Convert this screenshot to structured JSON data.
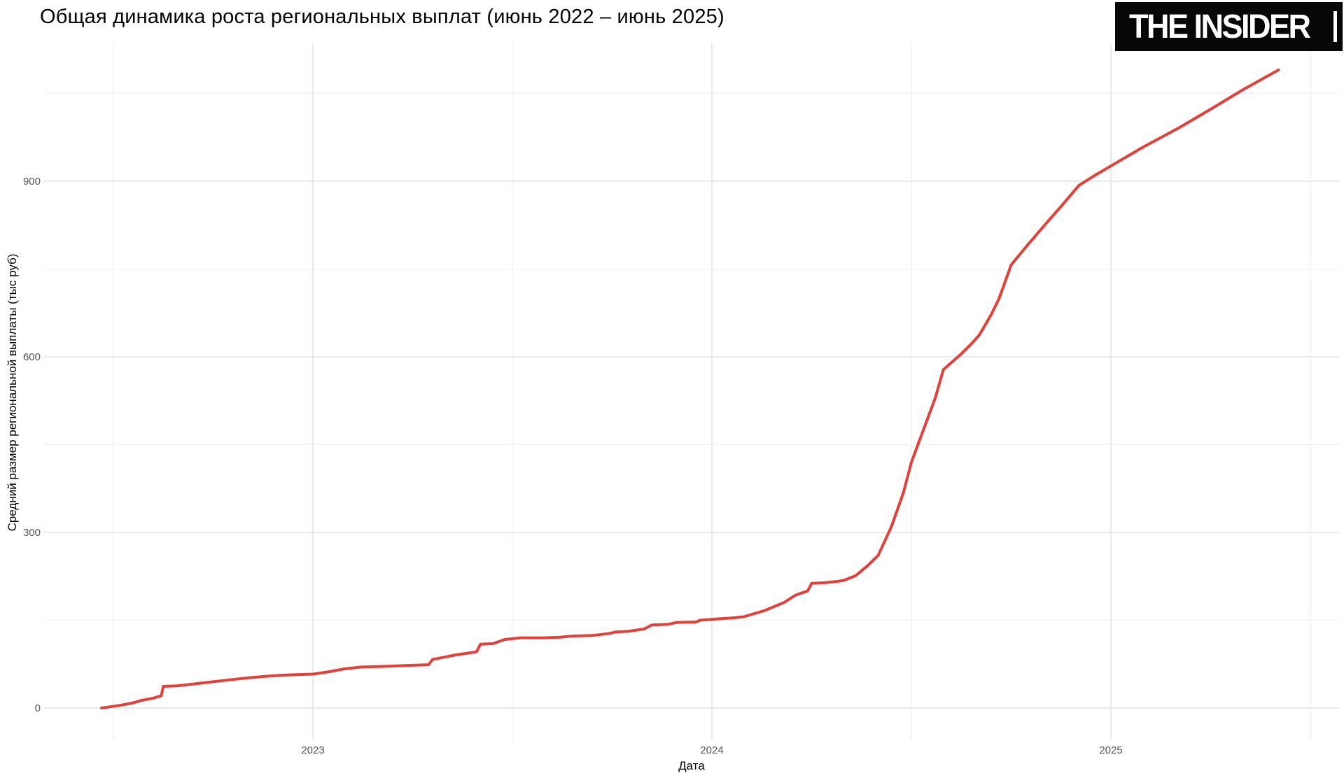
{
  "header": {
    "logo_text": "THE INSIDER"
  },
  "chart_data": {
    "type": "line",
    "title": "Общая динамика роста региональных выплат (июнь 2022 – июнь 2025)",
    "xlabel": "Дата",
    "ylabel": "Средний размер региональной выплаты (тыс руб)",
    "legend": "none",
    "grid": "on",
    "x_range_years": [
      2022.42,
      2025.58
    ],
    "ylim": [
      0,
      1090
    ],
    "x_ticks": [
      {
        "label": "2023",
        "year": 2023
      },
      {
        "label": "2024",
        "year": 2024
      },
      {
        "label": "2025",
        "year": 2025
      }
    ],
    "x_minor_years": [
      2022.5,
      2023.5,
      2024.5,
      2025.5
    ],
    "y_ticks": [
      {
        "label": "0",
        "value": 0
      },
      {
        "label": "300",
        "value": 300
      },
      {
        "label": "600",
        "value": 600
      },
      {
        "label": "900",
        "value": 900
      }
    ],
    "y_minor_values": [
      150,
      450,
      750,
      1050
    ],
    "series": [
      {
        "name": "Средний размер региональной выплаты (тыс руб)",
        "color": "#e2403a",
        "points": [
          [
            2022.47,
            0
          ],
          [
            2022.49,
            2
          ],
          [
            2022.52,
            5
          ],
          [
            2022.55,
            9
          ],
          [
            2022.57,
            13
          ],
          [
            2022.6,
            17
          ],
          [
            2022.62,
            21
          ],
          [
            2022.625,
            37
          ],
          [
            2022.66,
            38
          ],
          [
            2022.7,
            41
          ],
          [
            2022.75,
            45
          ],
          [
            2022.79,
            48
          ],
          [
            2022.83,
            51
          ],
          [
            2022.88,
            54
          ],
          [
            2022.92,
            56
          ],
          [
            2022.96,
            57
          ],
          [
            2023.0,
            58
          ],
          [
            2023.04,
            62
          ],
          [
            2023.08,
            67
          ],
          [
            2023.12,
            70
          ],
          [
            2023.17,
            71
          ],
          [
            2023.21,
            72
          ],
          [
            2023.25,
            73
          ],
          [
            2023.29,
            74
          ],
          [
            2023.3,
            83
          ],
          [
            2023.33,
            87
          ],
          [
            2023.36,
            91
          ],
          [
            2023.4,
            95
          ],
          [
            2023.41,
            96
          ],
          [
            2023.42,
            109
          ],
          [
            2023.45,
            110
          ],
          [
            2023.46,
            112
          ],
          [
            2023.48,
            117
          ],
          [
            2023.52,
            120
          ],
          [
            2023.58,
            120
          ],
          [
            2023.62,
            121
          ],
          [
            2023.65,
            123
          ],
          [
            2023.7,
            124
          ],
          [
            2023.74,
            127
          ],
          [
            2023.76,
            130
          ],
          [
            2023.79,
            131
          ],
          [
            2023.83,
            135
          ],
          [
            2023.85,
            142
          ],
          [
            2023.89,
            143
          ],
          [
            2023.91,
            146
          ],
          [
            2023.96,
            147
          ],
          [
            2023.97,
            150
          ],
          [
            2024.01,
            152
          ],
          [
            2024.05,
            154
          ],
          [
            2024.08,
            156
          ],
          [
            2024.13,
            166
          ],
          [
            2024.18,
            180
          ],
          [
            2024.21,
            193
          ],
          [
            2024.24,
            200
          ],
          [
            2024.25,
            213
          ],
          [
            2024.28,
            214
          ],
          [
            2024.31,
            216
          ],
          [
            2024.33,
            218
          ],
          [
            2024.36,
            226
          ],
          [
            2024.39,
            243
          ],
          [
            2024.417,
            261
          ],
          [
            2024.45,
            310
          ],
          [
            2024.48,
            368
          ],
          [
            2024.5,
            420
          ],
          [
            2024.53,
            475
          ],
          [
            2024.56,
            530
          ],
          [
            2024.58,
            578
          ],
          [
            2024.6,
            590
          ],
          [
            2024.625,
            605
          ],
          [
            2024.65,
            622
          ],
          [
            2024.67,
            637
          ],
          [
            2024.7,
            672
          ],
          [
            2024.72,
            700
          ],
          [
            2024.75,
            757
          ],
          [
            2024.79,
            790
          ],
          [
            2024.83,
            822
          ],
          [
            2024.875,
            857
          ],
          [
            2024.92,
            893
          ],
          [
            2024.96,
            910
          ],
          [
            2025.0,
            926
          ],
          [
            2025.08,
            958
          ],
          [
            2025.17,
            991
          ],
          [
            2025.25,
            1023
          ],
          [
            2025.33,
            1056
          ],
          [
            2025.42,
            1090
          ]
        ]
      }
    ]
  },
  "colors": {
    "line": "#e2403a",
    "grid_major": "#e4e4e4",
    "grid_minor": "#f1f1f1",
    "tick_label": "#565656",
    "axis_title": "#000000",
    "logo_bg": "#070707",
    "logo_fg": "#ffffff"
  }
}
